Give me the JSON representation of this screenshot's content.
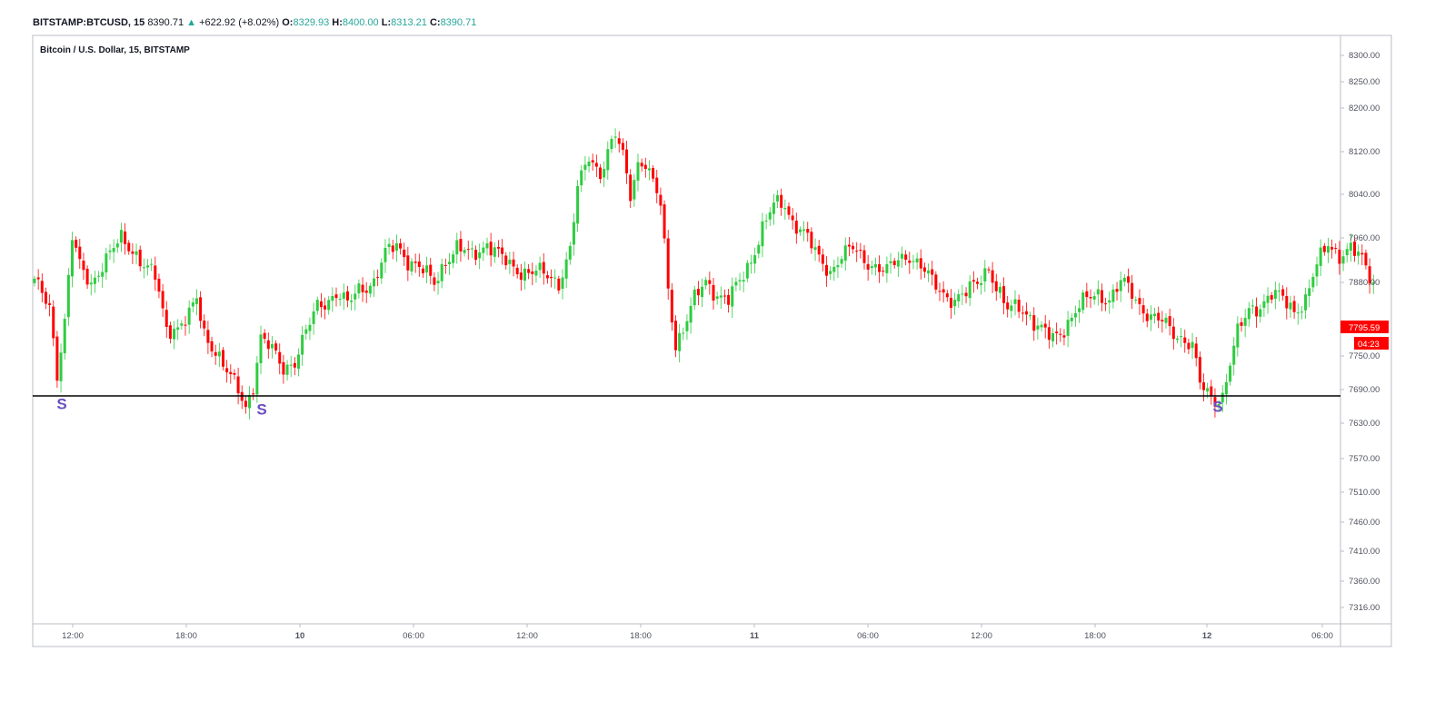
{
  "header": {
    "symbol": "BITSTAMP:BTCUSD, 15",
    "price": "8390.71",
    "change": "+622.92 (+8.02%)",
    "o_label": "O:",
    "o_value": "8329.93",
    "h_label": "H:",
    "h_value": "8400.00",
    "l_label": "L:",
    "l_value": "8313.21",
    "c_label": "C:",
    "c_value": "8390.71"
  },
  "colors": {
    "up": "#2ecc40",
    "down": "#ff0000",
    "marker": "#6a4fbf",
    "line": "#000000",
    "badge": "#ff0000"
  },
  "chart_data": {
    "type": "candlestick",
    "title": "Bitcoin / U.S. Dollar, 15, BITSTAMP",
    "ylim": [
      7290,
      8330
    ],
    "y_ticks": [
      "8300.00",
      "8250.00",
      "8200.00",
      "8120.00",
      "8040.00",
      "7960.00",
      "7880.00",
      "7750.00",
      "7690.00",
      "7630.00",
      "7570.00",
      "7510.00",
      "7460.00",
      "7410.00",
      "7360.00",
      "7316.00"
    ],
    "x_ticks": [
      "12:00",
      "18:00",
      "10",
      "06:00",
      "12:00",
      "18:00",
      "11",
      "06:00",
      "12:00",
      "18:00",
      "12",
      "06:00"
    ],
    "support_level": 7690,
    "markers": [
      {
        "label": "S",
        "value": 7660
      },
      {
        "label": "S",
        "value": 7650
      },
      {
        "label": "S",
        "value": 7655
      }
    ],
    "last_price_badge": "7795.59",
    "countdown_badge": "04:23",
    "anchors": [
      [
        0,
        7880
      ],
      [
        4,
        7840
      ],
      [
        6,
        7720
      ],
      [
        8,
        7810
      ],
      [
        10,
        7960
      ],
      [
        12,
        7910
      ],
      [
        15,
        7880
      ],
      [
        17,
        7900
      ],
      [
        20,
        7930
      ],
      [
        23,
        7960
      ],
      [
        26,
        7940
      ],
      [
        29,
        7910
      ],
      [
        32,
        7890
      ],
      [
        35,
        7800
      ],
      [
        38,
        7800
      ],
      [
        41,
        7820
      ],
      [
        43,
        7850
      ],
      [
        45,
        7790
      ],
      [
        48,
        7760
      ],
      [
        51,
        7720
      ],
      [
        54,
        7690
      ],
      [
        56,
        7660
      ],
      [
        58,
        7700
      ],
      [
        60,
        7780
      ],
      [
        63,
        7760
      ],
      [
        66,
        7730
      ],
      [
        69,
        7740
      ],
      [
        72,
        7790
      ],
      [
        75,
        7840
      ],
      [
        78,
        7850
      ],
      [
        80,
        7860
      ],
      [
        83,
        7840
      ],
      [
        86,
        7870
      ],
      [
        90,
        7880
      ],
      [
        93,
        7930
      ],
      [
        96,
        7950
      ],
      [
        99,
        7920
      ],
      [
        103,
        7900
      ],
      [
        106,
        7880
      ],
      [
        109,
        7920
      ],
      [
        112,
        7940
      ],
      [
        116,
        7930
      ],
      [
        120,
        7950
      ],
      [
        123,
        7930
      ],
      [
        126,
        7910
      ],
      [
        129,
        7900
      ],
      [
        133,
        7900
      ],
      [
        136,
        7890
      ],
      [
        139,
        7880
      ],
      [
        142,
        7940
      ],
      [
        144,
        8050
      ],
      [
        147,
        8110
      ],
      [
        150,
        8080
      ],
      [
        152,
        8120
      ],
      [
        154,
        8150
      ],
      [
        156,
        8110
      ],
      [
        158,
        8040
      ],
      [
        160,
        8100
      ],
      [
        162,
        8100
      ],
      [
        164,
        8060
      ],
      [
        166,
        8020
      ],
      [
        168,
        7870
      ],
      [
        170,
        7770
      ],
      [
        172,
        7800
      ],
      [
        175,
        7850
      ],
      [
        178,
        7880
      ],
      [
        181,
        7860
      ],
      [
        184,
        7850
      ],
      [
        187,
        7880
      ],
      [
        190,
        7920
      ],
      [
        193,
        7980
      ],
      [
        196,
        8020
      ],
      [
        199,
        8020
      ],
      [
        201,
        7990
      ],
      [
        203,
        7980
      ],
      [
        205,
        7960
      ],
      [
        208,
        7920
      ],
      [
        211,
        7900
      ],
      [
        214,
        7930
      ],
      [
        217,
        7940
      ],
      [
        220,
        7920
      ],
      [
        223,
        7910
      ],
      [
        226,
        7900
      ],
      [
        229,
        7920
      ],
      [
        232,
        7930
      ],
      [
        235,
        7910
      ],
      [
        238,
        7880
      ],
      [
        241,
        7860
      ],
      [
        244,
        7850
      ],
      [
        247,
        7860
      ],
      [
        250,
        7880
      ],
      [
        253,
        7910
      ],
      [
        255,
        7870
      ],
      [
        258,
        7830
      ],
      [
        261,
        7840
      ],
      [
        264,
        7820
      ],
      [
        266,
        7800
      ],
      [
        268,
        7790
      ],
      [
        270,
        7780
      ],
      [
        273,
        7800
      ],
      [
        276,
        7830
      ],
      [
        279,
        7850
      ],
      [
        282,
        7860
      ],
      [
        285,
        7850
      ],
      [
        288,
        7880
      ],
      [
        290,
        7870
      ],
      [
        293,
        7840
      ],
      [
        296,
        7820
      ],
      [
        299,
        7810
      ],
      [
        302,
        7790
      ],
      [
        305,
        7780
      ],
      [
        307,
        7770
      ],
      [
        309,
        7700
      ],
      [
        311,
        7680
      ],
      [
        313,
        7670
      ],
      [
        315,
        7680
      ],
      [
        317,
        7740
      ],
      [
        319,
        7790
      ],
      [
        322,
        7830
      ],
      [
        325,
        7840
      ],
      [
        328,
        7860
      ],
      [
        331,
        7850
      ],
      [
        334,
        7830
      ],
      [
        337,
        7850
      ],
      [
        340,
        7910
      ],
      [
        343,
        7950
      ],
      [
        346,
        7930
      ],
      [
        349,
        7940
      ],
      [
        352,
        7920
      ],
      [
        355,
        7880
      ]
    ]
  }
}
